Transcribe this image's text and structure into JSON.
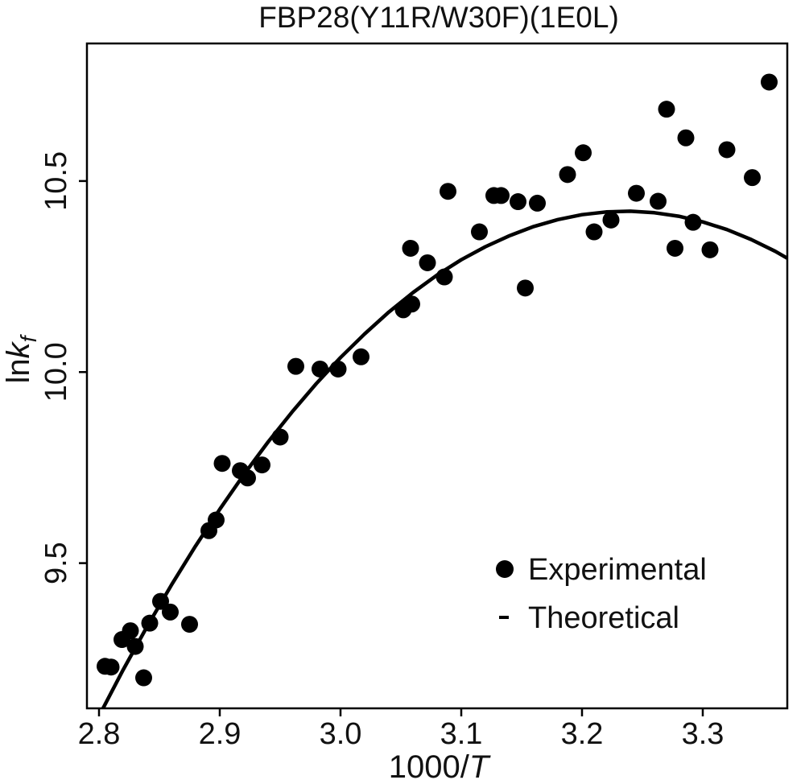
{
  "chart_data": {
    "type": "scatter",
    "title": "FBP28(Y11R/W30F)(1E0L)",
    "xlabel": {
      "prefix": "1000/",
      "variable": "T"
    },
    "ylabel": {
      "prefix": "ln",
      "variable": "k",
      "subscript": "f"
    },
    "xlim": [
      2.79,
      3.37
    ],
    "ylim": [
      9.12,
      10.86
    ],
    "x_ticks": [
      2.8,
      2.9,
      3.0,
      3.1,
      3.2,
      3.3
    ],
    "x_tick_labels": [
      "2.8",
      "2.9",
      "3.0",
      "3.1",
      "3.2",
      "3.3"
    ],
    "y_ticks": [
      9.5,
      10.0,
      10.5
    ],
    "y_tick_labels": [
      "9.5",
      "10.0",
      "10.5"
    ],
    "grid": false,
    "legend": {
      "placement": "bottom-right",
      "entries": [
        "Experimental",
        "Theoretical"
      ]
    },
    "series": [
      {
        "name": "Experimental",
        "kind": "scatter",
        "color": "#000000",
        "points": [
          [
            2.805,
            9.23
          ],
          [
            2.81,
            9.228
          ],
          [
            2.819,
            9.3
          ],
          [
            2.826,
            9.323
          ],
          [
            2.83,
            9.282
          ],
          [
            2.837,
            9.2
          ],
          [
            2.842,
            9.343
          ],
          [
            2.851,
            9.4
          ],
          [
            2.859,
            9.372
          ],
          [
            2.875,
            9.34
          ],
          [
            2.891,
            9.585
          ],
          [
            2.897,
            9.613
          ],
          [
            2.902,
            9.761
          ],
          [
            2.917,
            9.742
          ],
          [
            2.923,
            9.723
          ],
          [
            2.935,
            9.757
          ],
          [
            2.95,
            9.83
          ],
          [
            2.963,
            10.015
          ],
          [
            2.983,
            10.008
          ],
          [
            2.998,
            10.008
          ],
          [
            3.017,
            10.04
          ],
          [
            3.052,
            10.163
          ],
          [
            3.059,
            10.178
          ],
          [
            3.058,
            10.324
          ],
          [
            3.072,
            10.286
          ],
          [
            3.086,
            10.249
          ],
          [
            3.089,
            10.473
          ],
          [
            3.115,
            10.367
          ],
          [
            3.127,
            10.462
          ],
          [
            3.133,
            10.462
          ],
          [
            3.147,
            10.446
          ],
          [
            3.153,
            10.22
          ],
          [
            3.163,
            10.442
          ],
          [
            3.188,
            10.517
          ],
          [
            3.201,
            10.574
          ],
          [
            3.21,
            10.367
          ],
          [
            3.224,
            10.398
          ],
          [
            3.245,
            10.468
          ],
          [
            3.263,
            10.447
          ],
          [
            3.27,
            10.688
          ],
          [
            3.277,
            10.324
          ],
          [
            3.286,
            10.613
          ],
          [
            3.292,
            10.392
          ],
          [
            3.306,
            10.32
          ],
          [
            3.32,
            10.582
          ],
          [
            3.341,
            10.509
          ],
          [
            3.355,
            10.759
          ]
        ]
      },
      {
        "name": "Theoretical",
        "kind": "line",
        "color": "#000000",
        "x": [
          2.8,
          2.82,
          2.84,
          2.86,
          2.88,
          2.9,
          2.92,
          2.94,
          2.96,
          2.98,
          3.0,
          3.02,
          3.04,
          3.06,
          3.08,
          3.1,
          3.12,
          3.14,
          3.16,
          3.18,
          3.2,
          3.22,
          3.24,
          3.26,
          3.28,
          3.3,
          3.32,
          3.34,
          3.36,
          3.37
        ],
        "y": [
          9.1,
          9.221,
          9.335,
          9.443,
          9.545,
          9.641,
          9.732,
          9.817,
          9.896,
          9.97,
          10.038,
          10.1,
          10.157,
          10.208,
          10.254,
          10.294,
          10.328,
          10.357,
          10.381,
          10.399,
          10.412,
          10.419,
          10.421,
          10.417,
          10.408,
          10.393,
          10.373,
          10.347,
          10.316,
          10.298
        ]
      }
    ]
  }
}
